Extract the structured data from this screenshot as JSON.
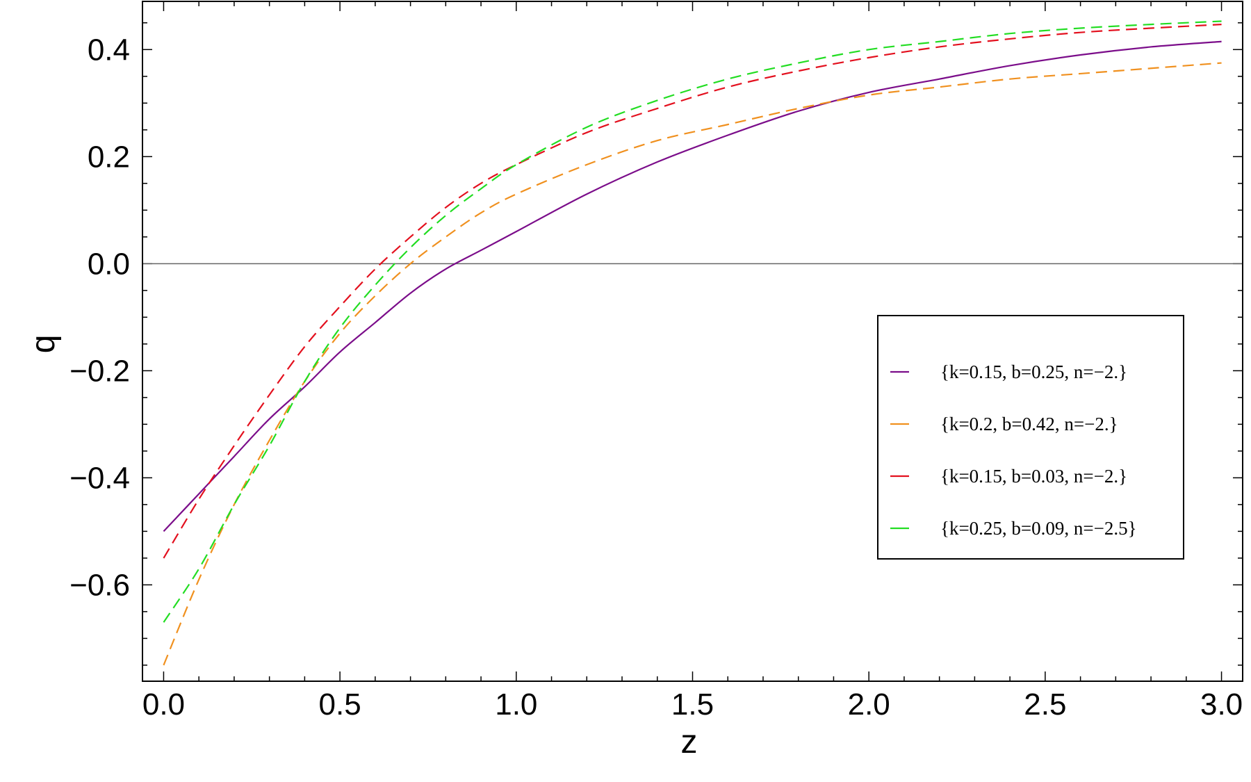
{
  "chart_data": {
    "type": "line",
    "title": "",
    "xlabel": "z",
    "ylabel": "q",
    "xlim": [
      -0.06,
      3.06
    ],
    "ylim": [
      -0.78,
      0.49
    ],
    "xticks": [
      {
        "value": 0.0,
        "label": "0.0"
      },
      {
        "value": 0.5,
        "label": "0.5"
      },
      {
        "value": 1.0,
        "label": "1.0"
      },
      {
        "value": 1.5,
        "label": "1.5"
      },
      {
        "value": 2.0,
        "label": "2.0"
      },
      {
        "value": 2.5,
        "label": "2.5"
      },
      {
        "value": 3.0,
        "label": "3.0"
      }
    ],
    "yticks": [
      {
        "value": -0.6,
        "label": "−0.6"
      },
      {
        "value": -0.4,
        "label": "−0.4"
      },
      {
        "value": -0.2,
        "label": "−0.2"
      },
      {
        "value": 0.0,
        "label": "0.0"
      },
      {
        "value": 0.2,
        "label": "0.2"
      },
      {
        "value": 0.4,
        "label": "0.4"
      }
    ],
    "zero_line": true,
    "grid": false,
    "legend_position": "right",
    "series": [
      {
        "name": "{k=0.15, b=0.25, n=−2.}",
        "color": "#7b0d8a",
        "dash": "solid",
        "x": [
          0,
          0.1,
          0.2,
          0.3,
          0.4,
          0.5,
          0.6,
          0.7,
          0.8,
          0.9,
          1.0,
          1.2,
          1.4,
          1.6,
          1.8,
          2.0,
          2.2,
          2.4,
          2.6,
          2.8,
          3.0
        ],
        "y": [
          -0.5,
          -0.43,
          -0.36,
          -0.29,
          -0.23,
          -0.165,
          -0.11,
          -0.055,
          -0.01,
          0.025,
          0.06,
          0.13,
          0.19,
          0.24,
          0.285,
          0.32,
          0.345,
          0.37,
          0.39,
          0.405,
          0.415
        ]
      },
      {
        "name": "{k=0.2, b=0.42, n=−2.}",
        "color": "#f0901e",
        "dash": "dashed",
        "x": [
          0,
          0.1,
          0.2,
          0.3,
          0.4,
          0.5,
          0.6,
          0.7,
          0.8,
          0.9,
          1.0,
          1.2,
          1.4,
          1.6,
          1.8,
          2.0,
          2.2,
          2.4,
          2.6,
          2.8,
          3.0
        ],
        "y": [
          -0.75,
          -0.59,
          -0.45,
          -0.33,
          -0.22,
          -0.13,
          -0.06,
          0.0,
          0.05,
          0.095,
          0.13,
          0.185,
          0.23,
          0.26,
          0.29,
          0.315,
          0.33,
          0.345,
          0.355,
          0.365,
          0.375
        ]
      },
      {
        "name": "{k=0.15, b=0.03, n=−2.}",
        "color": "#e3101e",
        "dash": "dashed",
        "x": [
          0,
          0.1,
          0.2,
          0.3,
          0.4,
          0.5,
          0.6,
          0.7,
          0.8,
          0.9,
          1.0,
          1.2,
          1.4,
          1.6,
          1.8,
          2.0,
          2.2,
          2.4,
          2.6,
          2.8,
          3.0
        ],
        "y": [
          -0.55,
          -0.44,
          -0.34,
          -0.245,
          -0.155,
          -0.08,
          -0.01,
          0.05,
          0.105,
          0.15,
          0.185,
          0.245,
          0.29,
          0.33,
          0.36,
          0.385,
          0.405,
          0.42,
          0.432,
          0.44,
          0.447
        ]
      },
      {
        "name": "{k=0.25, b=0.09, n=−2.5}",
        "color": "#22dd22",
        "dash": "dashed",
        "x": [
          0,
          0.1,
          0.2,
          0.3,
          0.4,
          0.5,
          0.6,
          0.7,
          0.8,
          0.9,
          1.0,
          1.2,
          1.4,
          1.6,
          1.8,
          2.0,
          2.2,
          2.4,
          2.6,
          2.8,
          3.0
        ],
        "y": [
          -0.67,
          -0.57,
          -0.45,
          -0.34,
          -0.22,
          -0.12,
          -0.04,
          0.03,
          0.09,
          0.14,
          0.185,
          0.255,
          0.305,
          0.345,
          0.375,
          0.4,
          0.415,
          0.43,
          0.44,
          0.447,
          0.453
        ]
      }
    ]
  }
}
